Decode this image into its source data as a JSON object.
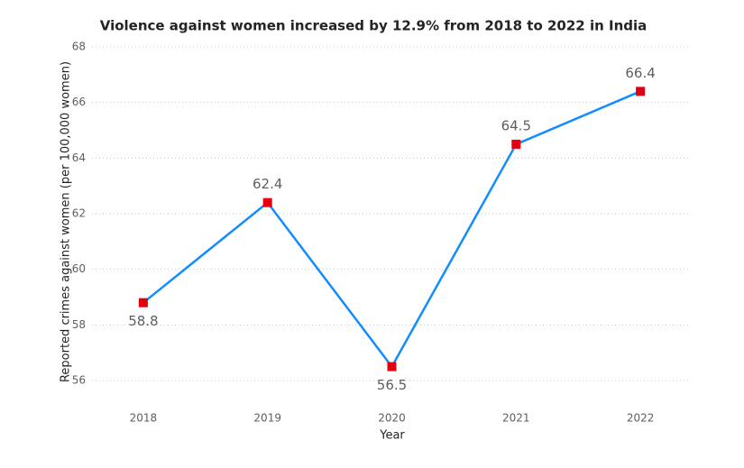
{
  "chart_data": {
    "type": "line",
    "title": "Violence against women increased by 12.9% from 2018 to 2022 in India",
    "x_label": "Year",
    "y_label": "Reported crimes against women (per 100,000 women)",
    "categories": [
      "2018",
      "2019",
      "2020",
      "2021",
      "2022"
    ],
    "values": [
      58.8,
      62.4,
      56.5,
      64.5,
      66.4
    ],
    "color": "#118DFF",
    "marker_color": "#E3000F",
    "ylim": [
      55.3,
      68
    ],
    "yticks": [
      56,
      58,
      60,
      62,
      64,
      66,
      68
    ],
    "grid": true
  }
}
